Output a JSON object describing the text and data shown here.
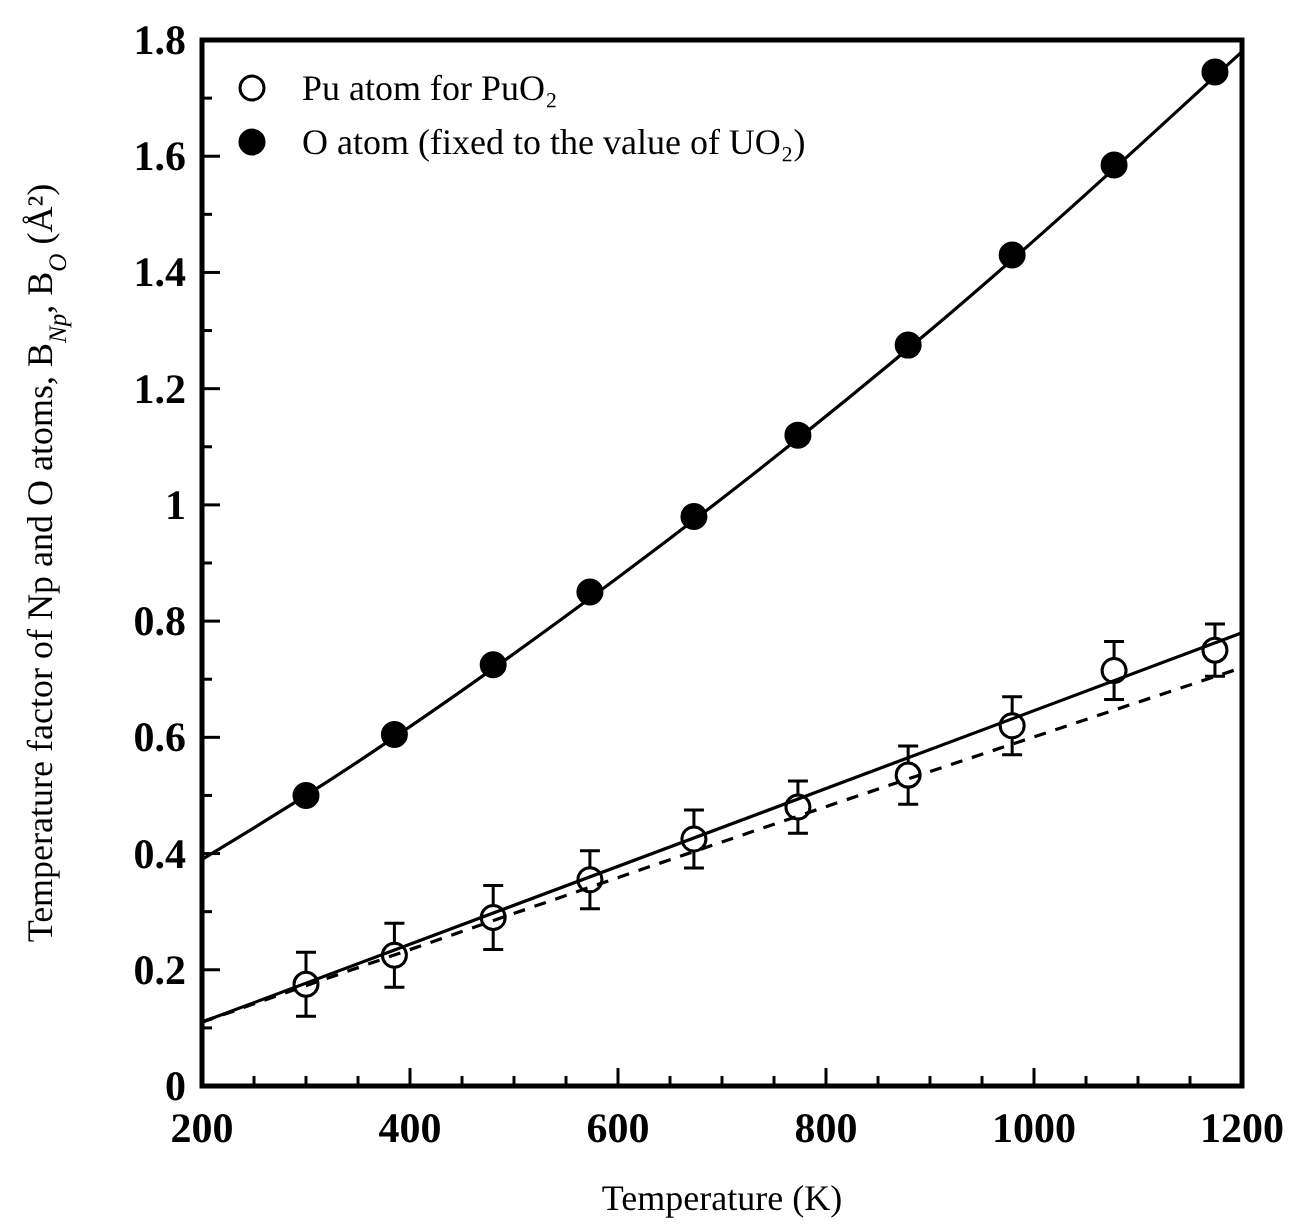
{
  "chart_data": {
    "type": "scatter",
    "xlabel": "Temperature (K)",
    "ylabel": "Temperature factor of Np and O atoms, B$_{Np}$, B$_{O}$ (Å²)",
    "xlim": [
      200,
      1200
    ],
    "ylim": [
      0,
      1.8
    ],
    "xticks": [
      200,
      {
        "value": 250,
        "label": null
      },
      {
        "value": 300,
        "label": null
      },
      {
        "value": 350,
        "label": null
      },
      400,
      {
        "value": 450,
        "label": null
      },
      {
        "value": 500,
        "label": null
      },
      {
        "value": 550,
        "label": null
      },
      600,
      {
        "value": 650,
        "label": null
      },
      {
        "value": 700,
        "label": null
      },
      {
        "value": 750,
        "label": null
      },
      800,
      {
        "value": 850,
        "label": null
      },
      {
        "value": 900,
        "label": null
      },
      {
        "value": 950,
        "label": null
      },
      1000,
      {
        "value": 1050,
        "label": null
      },
      {
        "value": 1100,
        "label": null
      },
      {
        "value": 1150,
        "label": null
      },
      1200
    ],
    "yticks": [
      0,
      {
        "value": 0.1,
        "label": null
      },
      0.2,
      {
        "value": 0.3,
        "label": null
      },
      0.4,
      {
        "value": 0.5,
        "label": null
      },
      0.6,
      {
        "value": 0.7,
        "label": null
      },
      0.8,
      {
        "value": 0.9,
        "label": null
      },
      1,
      {
        "value": 1.1,
        "label": null
      },
      1.2,
      {
        "value": 1.3,
        "label": null
      },
      1.4,
      {
        "value": 1.5,
        "label": null
      },
      1.6,
      {
        "value": 1.7,
        "label": null
      },
      1.8
    ],
    "legend": "top left",
    "grid": false,
    "series": [
      {
        "name": "Pu atom for PuO₂",
        "marker": "circle",
        "color": "#ffffff",
        "x": [
          300,
          385,
          480,
          573,
          673,
          773,
          879,
          979,
          1077,
          1174
        ],
        "values": [
          0.175,
          0.225,
          0.29,
          0.355,
          0.425,
          0.48,
          0.535,
          0.62,
          0.715,
          0.75
        ],
        "errors": [
          0.055,
          0.055,
          0.055,
          0.05,
          0.05,
          0.045,
          0.05,
          0.05,
          0.05,
          0.045
        ]
      },
      {
        "name": "O atom (fixed to the value of UO₂)",
        "marker": "circle",
        "color": "#000000",
        "x": [
          300,
          385,
          480,
          573,
          673,
          773,
          879,
          979,
          1077,
          1174
        ],
        "values": [
          0.5,
          0.605,
          0.725,
          0.85,
          0.98,
          1.12,
          1.275,
          1.43,
          1.585,
          1.745
        ]
      },
      {
        "type": "line",
        "marker": "none",
        "line_style": "solid",
        "color": "#000000",
        "x": [
          200,
          300,
          600,
          900,
          1200
        ],
        "values": [
          0.39,
          0.5,
          0.875,
          1.3,
          1.78
        ]
      },
      {
        "type": "line",
        "marker": "none",
        "line_style": "solid",
        "color": "#000000",
        "x": [
          200,
          1200
        ],
        "values": [
          0.11,
          0.78
        ]
      },
      {
        "type": "line",
        "marker": "none",
        "line_style": "dashed",
        "color": "#000000",
        "x": [
          200,
          700,
          1200
        ],
        "values": [
          0.11,
          0.42,
          0.72
        ]
      }
    ]
  }
}
